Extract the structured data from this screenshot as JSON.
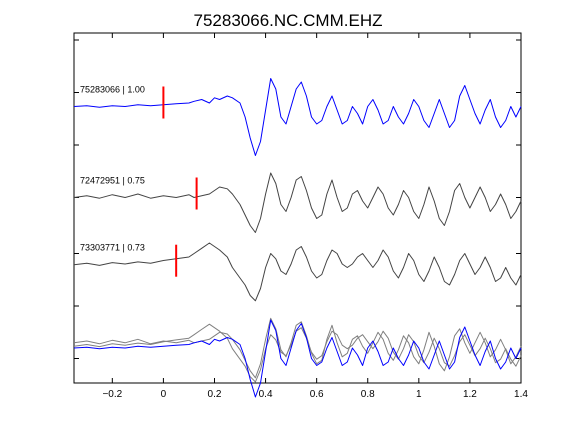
{
  "chart_data": {
    "type": "line",
    "title": "75283066.NC.CMM.EHZ",
    "xlabel": "",
    "ylabel": "",
    "xlim": [
      -0.35,
      1.4
    ],
    "xticks": [
      -0.2,
      0,
      0.2,
      0.4,
      0.6,
      0.8,
      1,
      1.2,
      1.4
    ],
    "xtick_labels": [
      "−0.2",
      "0",
      "0.2",
      "0.4",
      "0.6",
      "0.8",
      "1",
      "1.2",
      "1.4"
    ],
    "ylim": [
      0,
      10
    ],
    "yticks": [
      0.7,
      2.2,
      3.7,
      5.3,
      6.8,
      8.3,
      9.8
    ],
    "grid": false,
    "traces": [
      {
        "label": "75283066 | 1.00",
        "color": "#0000ff",
        "pick_time": 0.0,
        "pick_color": "#ff0000",
        "t": [
          -0.35,
          -0.3,
          -0.25,
          -0.2,
          -0.15,
          -0.1,
          -0.05,
          0,
          0.05,
          0.1,
          0.12,
          0.15,
          0.18,
          0.2,
          0.22,
          0.25,
          0.27,
          0.3,
          0.32,
          0.34,
          0.36,
          0.38,
          0.4,
          0.42,
          0.44,
          0.46,
          0.48,
          0.5,
          0.52,
          0.54,
          0.56,
          0.58,
          0.6,
          0.62,
          0.64,
          0.66,
          0.68,
          0.7,
          0.72,
          0.74,
          0.76,
          0.78,
          0.8,
          0.82,
          0.84,
          0.86,
          0.88,
          0.9,
          0.92,
          0.94,
          0.96,
          0.98,
          1,
          1.02,
          1.04,
          1.06,
          1.08,
          1.1,
          1.12,
          1.14,
          1.16,
          1.18,
          1.2,
          1.22,
          1.24,
          1.26,
          1.28,
          1.3,
          1.32,
          1.34,
          1.36,
          1.38,
          1.4
        ],
        "y": [
          7.9,
          7.92,
          7.88,
          7.92,
          7.9,
          7.95,
          7.92,
          7.95,
          7.98,
          8.0,
          8.05,
          8.1,
          8.0,
          8.15,
          8.1,
          8.2,
          8.15,
          8.0,
          7.6,
          7.0,
          6.5,
          6.9,
          7.8,
          8.7,
          8.4,
          7.6,
          7.4,
          7.9,
          8.4,
          8.6,
          8.2,
          7.6,
          7.4,
          7.5,
          7.9,
          8.2,
          7.8,
          7.4,
          7.5,
          7.9,
          7.7,
          7.4,
          7.9,
          8.1,
          7.8,
          7.4,
          7.5,
          7.9,
          7.6,
          7.4,
          7.7,
          8.1,
          7.9,
          7.5,
          7.3,
          7.7,
          8.1,
          7.7,
          7.3,
          7.5,
          8.2,
          8.5,
          8.1,
          7.7,
          7.4,
          7.8,
          8.1,
          7.6,
          7.3,
          7.5,
          7.9,
          7.6,
          7.9
        ]
      },
      {
        "label": "72472951 | 0.75",
        "color": "#444444",
        "pick_time": 0.13,
        "pick_color": "#ff0000",
        "t": [
          -0.35,
          -0.3,
          -0.25,
          -0.2,
          -0.15,
          -0.1,
          -0.05,
          0,
          0.05,
          0.1,
          0.12,
          0.15,
          0.18,
          0.2,
          0.22,
          0.25,
          0.27,
          0.3,
          0.32,
          0.34,
          0.36,
          0.38,
          0.4,
          0.42,
          0.44,
          0.46,
          0.48,
          0.5,
          0.52,
          0.54,
          0.56,
          0.58,
          0.6,
          0.62,
          0.64,
          0.66,
          0.68,
          0.7,
          0.72,
          0.74,
          0.76,
          0.78,
          0.8,
          0.82,
          0.84,
          0.86,
          0.88,
          0.9,
          0.92,
          0.94,
          0.96,
          0.98,
          1,
          1.02,
          1.04,
          1.06,
          1.08,
          1.1,
          1.12,
          1.14,
          1.16,
          1.18,
          1.2,
          1.22,
          1.24,
          1.26,
          1.28,
          1.3,
          1.32,
          1.34,
          1.36,
          1.38,
          1.4
        ],
        "y": [
          5.3,
          5.35,
          5.28,
          5.38,
          5.3,
          5.4,
          5.28,
          5.35,
          5.3,
          5.38,
          5.3,
          5.35,
          5.4,
          5.5,
          5.6,
          5.55,
          5.4,
          5.1,
          4.8,
          4.5,
          4.3,
          4.7,
          5.4,
          6.0,
          5.7,
          5.1,
          4.9,
          5.3,
          5.8,
          5.9,
          5.5,
          5.0,
          4.7,
          4.8,
          5.4,
          5.8,
          5.3,
          4.9,
          5.0,
          5.4,
          5.5,
          5.2,
          5.0,
          5.3,
          5.6,
          5.4,
          5.0,
          4.8,
          5.1,
          5.5,
          5.3,
          4.9,
          4.7,
          5.1,
          5.6,
          5.2,
          4.7,
          4.5,
          4.9,
          5.5,
          5.7,
          5.3,
          5.0,
          5.3,
          5.6,
          5.3,
          4.9,
          5.1,
          5.4,
          5.1,
          4.7,
          4.9,
          5.2
        ]
      },
      {
        "label": "73303771 | 0.73",
        "color": "#444444",
        "pick_time": 0.05,
        "pick_color": "#ff0000",
        "t": [
          -0.35,
          -0.3,
          -0.25,
          -0.2,
          -0.15,
          -0.1,
          -0.05,
          0,
          0.05,
          0.1,
          0.12,
          0.15,
          0.18,
          0.2,
          0.22,
          0.25,
          0.27,
          0.3,
          0.32,
          0.34,
          0.36,
          0.38,
          0.4,
          0.42,
          0.44,
          0.46,
          0.48,
          0.5,
          0.52,
          0.54,
          0.56,
          0.58,
          0.6,
          0.62,
          0.64,
          0.66,
          0.68,
          0.7,
          0.72,
          0.74,
          0.76,
          0.78,
          0.8,
          0.82,
          0.84,
          0.86,
          0.88,
          0.9,
          0.92,
          0.94,
          0.96,
          0.98,
          1,
          1.02,
          1.04,
          1.06,
          1.08,
          1.1,
          1.12,
          1.14,
          1.16,
          1.18,
          1.2,
          1.22,
          1.24,
          1.26,
          1.28,
          1.3,
          1.32,
          1.34,
          1.36,
          1.38,
          1.4
        ],
        "y": [
          3.38,
          3.42,
          3.36,
          3.44,
          3.4,
          3.46,
          3.42,
          3.5,
          3.55,
          3.6,
          3.7,
          3.85,
          4.0,
          3.9,
          3.8,
          3.6,
          3.3,
          3.0,
          2.8,
          2.5,
          2.35,
          2.7,
          3.3,
          3.7,
          3.55,
          3.2,
          3.1,
          3.4,
          3.8,
          3.9,
          3.6,
          3.2,
          3.0,
          3.1,
          3.5,
          3.8,
          3.7,
          3.4,
          3.3,
          3.4,
          3.6,
          3.7,
          3.5,
          3.3,
          3.5,
          3.8,
          3.6,
          3.2,
          3.0,
          3.3,
          3.7,
          3.5,
          3.1,
          2.9,
          3.2,
          3.6,
          3.3,
          2.9,
          2.8,
          3.1,
          3.5,
          3.7,
          3.4,
          3.1,
          3.3,
          3.6,
          3.3,
          2.9,
          3.0,
          3.3,
          3.0,
          2.8,
          3.1
        ]
      }
    ],
    "overlay": {
      "traces": [
        {
          "color": "#808080",
          "t": [
            -0.35,
            -0.3,
            -0.25,
            -0.2,
            -0.15,
            -0.1,
            -0.05,
            0,
            0.05,
            0.1,
            0.12,
            0.15,
            0.18,
            0.2,
            0.22,
            0.25,
            0.27,
            0.3,
            0.32,
            0.34,
            0.36,
            0.38,
            0.4,
            0.42,
            0.44,
            0.46,
            0.48,
            0.5,
            0.52,
            0.54,
            0.56,
            0.58,
            0.6,
            0.62,
            0.64,
            0.66,
            0.68,
            0.7,
            0.72,
            0.74,
            0.76,
            0.78,
            0.8,
            0.82,
            0.84,
            0.86,
            0.88,
            0.9,
            0.92,
            0.94,
            0.96,
            0.98,
            1,
            1.02,
            1.04,
            1.06,
            1.08,
            1.1,
            1.12,
            1.14,
            1.16,
            1.18,
            1.2,
            1.22,
            1.24,
            1.26,
            1.28,
            1.3,
            1.32,
            1.34,
            1.36,
            1.38,
            1.4
          ],
          "y": [
            1.15,
            1.2,
            1.12,
            1.22,
            1.15,
            1.25,
            1.12,
            1.2,
            1.15,
            1.22,
            1.15,
            1.2,
            1.25,
            1.35,
            1.45,
            1.4,
            1.25,
            0.95,
            0.65,
            0.35,
            0.15,
            0.55,
            1.25,
            1.85,
            1.55,
            0.95,
            0.75,
            1.15,
            1.65,
            1.75,
            1.35,
            0.85,
            0.55,
            0.65,
            1.25,
            1.65,
            1.15,
            0.75,
            0.85,
            1.25,
            1.35,
            1.05,
            0.85,
            1.15,
            1.45,
            1.25,
            0.85,
            0.65,
            0.95,
            1.35,
            1.15,
            0.75,
            0.55,
            0.95,
            1.45,
            1.05,
            0.55,
            0.35,
            0.75,
            1.35,
            1.55,
            1.15,
            0.85,
            1.15,
            1.45,
            1.15,
            0.75,
            0.95,
            1.25,
            0.95,
            0.55,
            0.75,
            1.05
          ]
        },
        {
          "color": "#808080",
          "t": [
            -0.35,
            -0.3,
            -0.25,
            -0.2,
            -0.15,
            -0.1,
            -0.05,
            0,
            0.05,
            0.1,
            0.12,
            0.15,
            0.18,
            0.2,
            0.22,
            0.25,
            0.27,
            0.3,
            0.32,
            0.34,
            0.36,
            0.38,
            0.4,
            0.42,
            0.44,
            0.46,
            0.48,
            0.5,
            0.52,
            0.54,
            0.56,
            0.58,
            0.6,
            0.62,
            0.64,
            0.66,
            0.68,
            0.7,
            0.72,
            0.74,
            0.76,
            0.78,
            0.8,
            0.82,
            0.84,
            0.86,
            0.88,
            0.9,
            0.92,
            0.94,
            0.96,
            0.98,
            1,
            1.02,
            1.04,
            1.06,
            1.08,
            1.1,
            1.12,
            1.14,
            1.16,
            1.18,
            1.2,
            1.22,
            1.24,
            1.26,
            1.28,
            1.3,
            1.32,
            1.34,
            1.36,
            1.38,
            1.4
          ],
          "y": [
            1.05,
            1.1,
            1.04,
            1.12,
            1.08,
            1.14,
            1.1,
            1.18,
            1.23,
            1.28,
            1.38,
            1.53,
            1.68,
            1.58,
            1.48,
            1.28,
            0.98,
            0.68,
            0.48,
            0.18,
            0.03,
            0.38,
            0.98,
            1.38,
            1.23,
            0.88,
            0.78,
            1.08,
            1.48,
            1.58,
            1.28,
            0.88,
            0.68,
            0.78,
            1.18,
            1.48,
            1.38,
            1.08,
            0.98,
            1.08,
            1.28,
            1.38,
            1.18,
            0.98,
            1.18,
            1.48,
            1.28,
            0.88,
            0.68,
            0.98,
            1.38,
            1.18,
            0.78,
            0.58,
            0.88,
            1.28,
            0.98,
            0.58,
            0.48,
            0.78,
            1.18,
            1.38,
            1.08,
            0.78,
            0.98,
            1.28,
            0.98,
            0.58,
            0.68,
            0.98,
            0.68,
            0.48,
            0.78
          ]
        },
        {
          "color": "#0000ff",
          "t": [
            -0.35,
            -0.3,
            -0.25,
            -0.2,
            -0.15,
            -0.1,
            -0.05,
            0,
            0.05,
            0.1,
            0.12,
            0.15,
            0.18,
            0.2,
            0.22,
            0.25,
            0.27,
            0.3,
            0.32,
            0.34,
            0.36,
            0.38,
            0.4,
            0.42,
            0.44,
            0.46,
            0.48,
            0.5,
            0.52,
            0.54,
            0.56,
            0.58,
            0.6,
            0.62,
            0.64,
            0.66,
            0.68,
            0.7,
            0.72,
            0.74,
            0.76,
            0.78,
            0.8,
            0.82,
            0.84,
            0.86,
            0.88,
            0.9,
            0.92,
            0.94,
            0.96,
            0.98,
            1,
            1.02,
            1.04,
            1.06,
            1.08,
            1.1,
            1.12,
            1.14,
            1.16,
            1.18,
            1.2,
            1.22,
            1.24,
            1.26,
            1.28,
            1.3,
            1.32,
            1.34,
            1.36,
            1.38,
            1.4
          ],
          "y": [
            1.0,
            1.02,
            0.98,
            1.02,
            1.0,
            1.05,
            1.02,
            1.05,
            1.08,
            1.1,
            1.15,
            1.2,
            1.1,
            1.25,
            1.2,
            1.3,
            1.25,
            1.1,
            0.7,
            0.1,
            -0.4,
            0.0,
            0.9,
            1.8,
            1.5,
            0.7,
            0.5,
            1.0,
            1.5,
            1.7,
            1.3,
            0.7,
            0.5,
            0.6,
            1.0,
            1.3,
            0.9,
            0.5,
            0.6,
            1.0,
            0.8,
            0.5,
            1.0,
            1.2,
            0.9,
            0.5,
            0.6,
            1.0,
            0.7,
            0.5,
            0.8,
            1.2,
            1.0,
            0.6,
            0.4,
            0.8,
            1.2,
            0.8,
            0.4,
            0.6,
            1.3,
            1.6,
            1.2,
            0.8,
            0.5,
            0.9,
            1.2,
            0.7,
            0.4,
            0.6,
            1.0,
            0.7,
            1.0
          ]
        }
      ]
    }
  }
}
